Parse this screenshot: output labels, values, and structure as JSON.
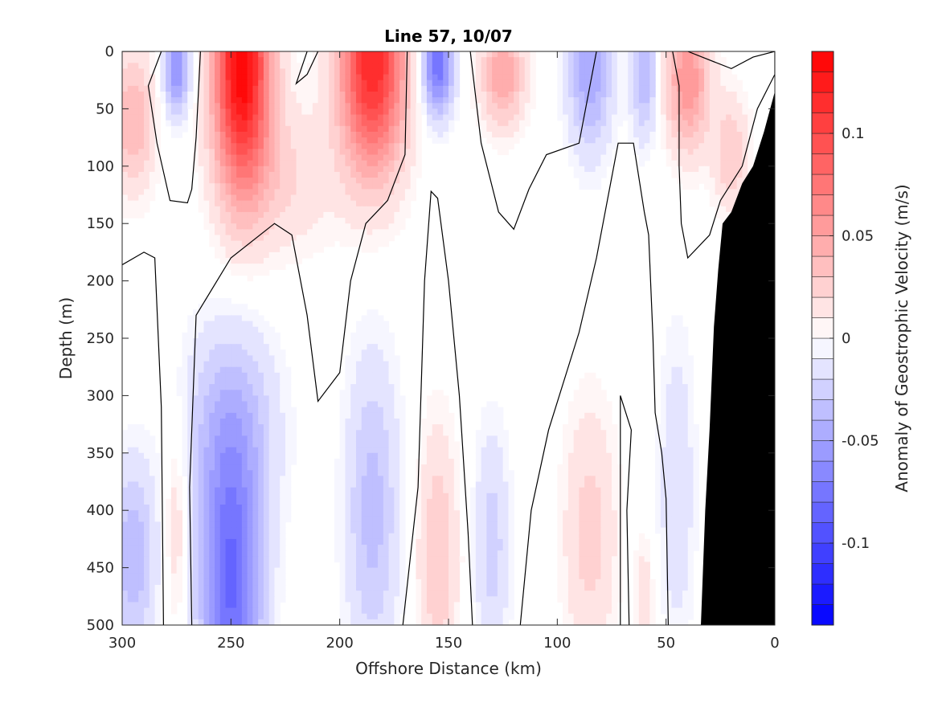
{
  "chart_data": {
    "type": "heatmap",
    "title": "Line 57, 10/07",
    "xlabel": "Offshore Distance (km)",
    "ylabel": "Depth (m)",
    "colorbar_label": "Anomaly of Geostrophic Velocity (m/s)",
    "xlim": [
      300,
      0
    ],
    "ylim": [
      500,
      0
    ],
    "x_reversed": true,
    "y_reversed": true,
    "x_ticks": [
      300,
      250,
      200,
      150,
      100,
      50,
      0
    ],
    "y_ticks": [
      0,
      50,
      100,
      150,
      200,
      250,
      300,
      350,
      400,
      450,
      500
    ],
    "colorbar_range": [
      -0.14,
      0.14
    ],
    "colorbar_ticks": [
      0.1,
      0.05,
      0,
      -0.05,
      -0.1
    ],
    "colorbar_tick_labels": [
      "0.1",
      "0.05",
      "0",
      "-0.05",
      "-0.1"
    ],
    "colormap": "diverging blue-white-red, 28 levels",
    "colors": {
      "positive": "#ff0000",
      "negative": "#0000ff",
      "zero": "#ffffff",
      "bathymetry": "#000000",
      "contour": "#000000"
    },
    "grid": false,
    "anomaly_centers": [
      {
        "x": 245,
        "depth": 10,
        "value": 0.14,
        "sx": 13,
        "sy": 110
      },
      {
        "x": 185,
        "depth": 10,
        "value": 0.12,
        "sx": 15,
        "sy": 95
      },
      {
        "x": 295,
        "depth": 60,
        "value": 0.04,
        "sx": 10,
        "sy": 60
      },
      {
        "x": 125,
        "depth": 20,
        "value": 0.05,
        "sx": 10,
        "sy": 45
      },
      {
        "x": 40,
        "depth": 25,
        "value": 0.06,
        "sx": 10,
        "sy": 60
      },
      {
        "x": 20,
        "depth": 90,
        "value": 0.03,
        "sx": 8,
        "sy": 50
      },
      {
        "x": 225,
        "depth": 110,
        "value": 0.02,
        "sx": 22,
        "sy": 65
      },
      {
        "x": 155,
        "depth": 10,
        "value": -0.08,
        "sx": 7,
        "sy": 45
      },
      {
        "x": 275,
        "depth": 15,
        "value": -0.06,
        "sx": 6,
        "sy": 40
      },
      {
        "x": 85,
        "depth": 15,
        "value": -0.05,
        "sx": 10,
        "sy": 70
      },
      {
        "x": 60,
        "depth": 20,
        "value": -0.04,
        "sx": 6,
        "sy": 55
      },
      {
        "x": 250,
        "depth": 470,
        "value": -0.08,
        "sx": 14,
        "sy": 110
      },
      {
        "x": 250,
        "depth": 330,
        "value": -0.04,
        "sx": 20,
        "sy": 90
      },
      {
        "x": 185,
        "depth": 400,
        "value": -0.035,
        "sx": 12,
        "sy": 130
      },
      {
        "x": 295,
        "depth": 440,
        "value": -0.04,
        "sx": 10,
        "sy": 80
      },
      {
        "x": 130,
        "depth": 430,
        "value": -0.025,
        "sx": 8,
        "sy": 100
      },
      {
        "x": 45,
        "depth": 380,
        "value": -0.02,
        "sx": 8,
        "sy": 130
      },
      {
        "x": 155,
        "depth": 440,
        "value": 0.03,
        "sx": 9,
        "sy": 110
      },
      {
        "x": 85,
        "depth": 420,
        "value": 0.025,
        "sx": 12,
        "sy": 110
      },
      {
        "x": 275,
        "depth": 410,
        "value": 0.02,
        "sx": 5,
        "sy": 90
      },
      {
        "x": 60,
        "depth": 480,
        "value": 0.02,
        "sx": 4,
        "sy": 50
      }
    ],
    "zero_contours": [
      [
        [
          300,
          186
        ],
        [
          290,
          175
        ],
        [
          285,
          180
        ],
        [
          282,
          310
        ],
        [
          281,
          500
        ]
      ],
      [
        [
          282,
          0
        ],
        [
          288,
          30
        ],
        [
          284,
          80
        ],
        [
          278,
          130
        ],
        [
          270,
          132
        ],
        [
          268,
          120
        ],
        [
          266,
          75
        ],
        [
          264,
          0
        ]
      ],
      [
        [
          210,
          0
        ],
        [
          215,
          20
        ],
        [
          220,
          28
        ],
        [
          215,
          0
        ]
      ],
      [
        [
          300,
          0
        ],
        [
          285,
          0
        ]
      ],
      [
        [
          268,
          500
        ],
        [
          269,
          380
        ],
        [
          266,
          230
        ],
        [
          250,
          180
        ],
        [
          230,
          150
        ],
        [
          222,
          160
        ],
        [
          215,
          230
        ],
        [
          210,
          305
        ],
        [
          200,
          280
        ],
        [
          195,
          200
        ],
        [
          188,
          150
        ],
        [
          178,
          130
        ],
        [
          170,
          90
        ],
        [
          169,
          0
        ]
      ],
      [
        [
          171,
          500
        ],
        [
          164,
          380
        ],
        [
          161,
          200
        ],
        [
          158,
          122
        ],
        [
          155,
          128
        ],
        [
          150,
          200
        ],
        [
          145,
          300
        ],
        [
          141,
          420
        ],
        [
          139,
          500
        ]
      ],
      [
        [
          140,
          0
        ],
        [
          135,
          80
        ],
        [
          127,
          140
        ],
        [
          120,
          155
        ],
        [
          113,
          120
        ],
        [
          105,
          90
        ],
        [
          90,
          80
        ],
        [
          82,
          0
        ]
      ],
      [
        [
          117,
          500
        ],
        [
          112,
          400
        ],
        [
          104,
          330
        ],
        [
          90,
          245
        ],
        [
          82,
          180
        ],
        [
          72,
          80
        ],
        [
          65,
          80
        ],
        [
          60,
          140
        ],
        [
          58,
          160
        ],
        [
          56,
          250
        ],
        [
          55,
          315
        ],
        [
          52,
          350
        ],
        [
          50,
          390
        ],
        [
          49,
          500
        ]
      ],
      [
        [
          71,
          500
        ],
        [
          71,
          300
        ],
        [
          66,
          330
        ],
        [
          68,
          400
        ],
        [
          67,
          500
        ]
      ],
      [
        [
          47,
          0
        ],
        [
          44,
          30
        ],
        [
          44,
          100
        ],
        [
          43,
          150
        ],
        [
          40,
          180
        ],
        [
          30,
          160
        ],
        [
          25,
          130
        ],
        [
          15,
          100
        ],
        [
          8,
          50
        ],
        [
          0,
          20
        ],
        [
          0,
          0
        ],
        [
          10,
          5
        ],
        [
          20,
          15
        ],
        [
          40,
          0
        ]
      ]
    ],
    "bathymetry": [
      [
        0,
        35
      ],
      [
        5,
        70
      ],
      [
        10,
        100
      ],
      [
        15,
        115
      ],
      [
        20,
        140
      ],
      [
        24,
        150
      ],
      [
        26,
        190
      ],
      [
        28,
        240
      ],
      [
        30,
        330
      ],
      [
        32,
        400
      ],
      [
        34,
        500
      ],
      [
        0,
        500
      ]
    ]
  }
}
